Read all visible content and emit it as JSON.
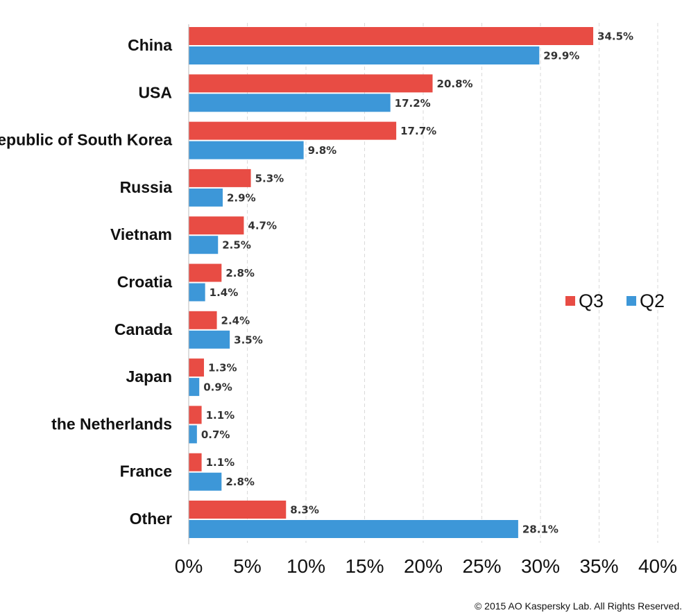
{
  "chart_data": {
    "type": "bar",
    "orientation": "horizontal",
    "categories": [
      "China",
      "USA",
      "Republic of South Korea",
      "Russia",
      "Vietnam",
      "Croatia",
      "Canada",
      "Japan",
      "the Netherlands",
      "France",
      "Other"
    ],
    "series": [
      {
        "name": "Q3",
        "color": "#e84c44",
        "values": [
          34.5,
          20.8,
          17.7,
          5.3,
          4.7,
          2.8,
          2.4,
          1.3,
          1.1,
          1.1,
          8.3
        ],
        "labels": [
          "34.5%",
          "20.8%",
          "17.7%",
          "5.3%",
          "4.7%",
          "2.8%",
          "2.4%",
          "1.3%",
          "1.1%",
          "1.1%",
          "8.3%"
        ]
      },
      {
        "name": "Q2",
        "color": "#3d97d8",
        "values": [
          29.9,
          17.2,
          9.8,
          2.9,
          2.5,
          1.4,
          3.5,
          0.9,
          0.7,
          2.8,
          28.1
        ],
        "labels": [
          "29.9%",
          "17.2%",
          "9.8%",
          "2.9%",
          "2.5%",
          "1.4%",
          "3.5%",
          "0.9%",
          "0.7%",
          "2.8%",
          "28.1%"
        ]
      }
    ],
    "xlim": [
      0,
      40
    ],
    "xticks": [
      0,
      5,
      10,
      15,
      20,
      25,
      30,
      35,
      40
    ],
    "xtick_labels": [
      "0%",
      "5%",
      "10%",
      "15%",
      "20%",
      "25%",
      "30%",
      "35%",
      "40%"
    ],
    "grid": "vertical-dashed",
    "legend_position": "right-middle"
  },
  "footer": {
    "copyright": "© 2015 AO Kaspersky Lab. All Rights Reserved."
  }
}
